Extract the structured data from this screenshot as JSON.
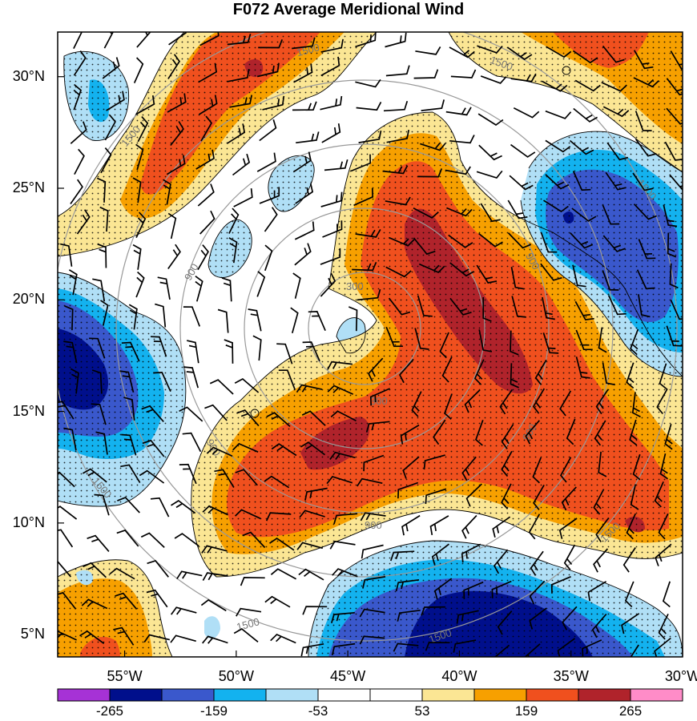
{
  "title": "F072 Average Meridional Wind",
  "map": {
    "lat_range": [
      4,
      32
    ],
    "lon_range": [
      -58,
      -30
    ],
    "lat_ticks": [
      {
        "value": 30,
        "label": "30°N"
      },
      {
        "value": 25,
        "label": "25°N"
      },
      {
        "value": 20,
        "label": "20°N"
      },
      {
        "value": 15,
        "label": "15°N"
      },
      {
        "value": 10,
        "label": "10°N"
      },
      {
        "value": 5,
        "label": "5°N"
      }
    ],
    "lon_ticks": [
      {
        "value": -55,
        "label": "55°W"
      },
      {
        "value": -50,
        "label": "50°W"
      },
      {
        "value": -45,
        "label": "45°W"
      },
      {
        "value": -40,
        "label": "40°W"
      },
      {
        "value": -35,
        "label": "35°W"
      },
      {
        "value": -30,
        "label": "30°W"
      }
    ],
    "range_ring_labels": [
      "300",
      "900",
      "1500"
    ],
    "features": [
      "filled meridional wind contours",
      "stippling",
      "wind barbs",
      "range rings centered near 18°N 45°W"
    ]
  },
  "colorbar": {
    "colors": [
      "#a632d6",
      "#000f8c",
      "#3a58cc",
      "#13b2ef",
      "#b0dff6",
      "#ffffff",
      "#ffffff",
      "#fbe694",
      "#f7a000",
      "#f0501e",
      "#b0232b",
      "#ff8cc8"
    ],
    "labels": [
      "-265",
      "-159",
      "-53",
      "53",
      "159",
      "265"
    ]
  }
}
